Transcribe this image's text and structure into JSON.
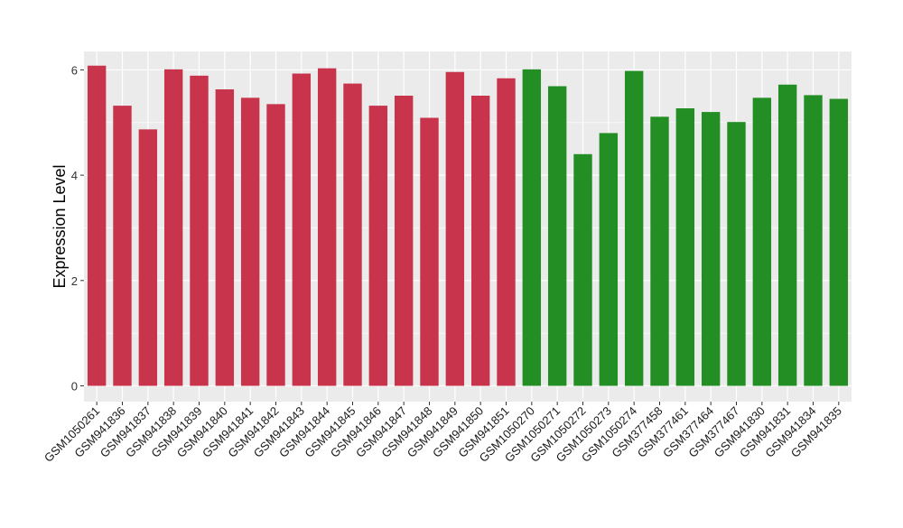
{
  "chart_data": {
    "type": "bar",
    "xlabel": "",
    "ylabel": "Expression Level",
    "ylim": [
      -0.3,
      6.35
    ],
    "yticks": [
      0,
      2,
      4,
      6
    ],
    "grid": true,
    "legend": "none",
    "colors": {
      "group1": "#c8344b",
      "group2": "#238e23",
      "panel": "#ebebeb",
      "grid": "#ffffff"
    },
    "categories": [
      "GSM1050261",
      "GSM941836",
      "GSM941837",
      "GSM941838",
      "GSM941839",
      "GSM941840",
      "GSM941841",
      "GSM941842",
      "GSM941843",
      "GSM941844",
      "GSM941845",
      "GSM941846",
      "GSM941847",
      "GSM941848",
      "GSM941849",
      "GSM941850",
      "GSM941851",
      "GSM1050270",
      "GSM1050271",
      "GSM1050272",
      "GSM1050273",
      "GSM1050274",
      "GSM377458",
      "GSM377461",
      "GSM377464",
      "GSM377467",
      "GSM941830",
      "GSM941831",
      "GSM941834",
      "GSM941835"
    ],
    "values": [
      6.08,
      5.32,
      4.87,
      6.01,
      5.89,
      5.63,
      5.47,
      5.35,
      5.93,
      6.03,
      5.74,
      5.32,
      5.51,
      5.09,
      5.96,
      5.51,
      5.84,
      6.01,
      5.69,
      4.4,
      4.8,
      5.98,
      5.11,
      5.27,
      5.2,
      5.01,
      5.47,
      5.72,
      5.52,
      5.45
    ],
    "groups": [
      "group1",
      "group1",
      "group1",
      "group1",
      "group1",
      "group1",
      "group1",
      "group1",
      "group1",
      "group1",
      "group1",
      "group1",
      "group1",
      "group1",
      "group1",
      "group1",
      "group1",
      "group2",
      "group2",
      "group2",
      "group2",
      "group2",
      "group2",
      "group2",
      "group2",
      "group2",
      "group2",
      "group2",
      "group2",
      "group2"
    ]
  }
}
